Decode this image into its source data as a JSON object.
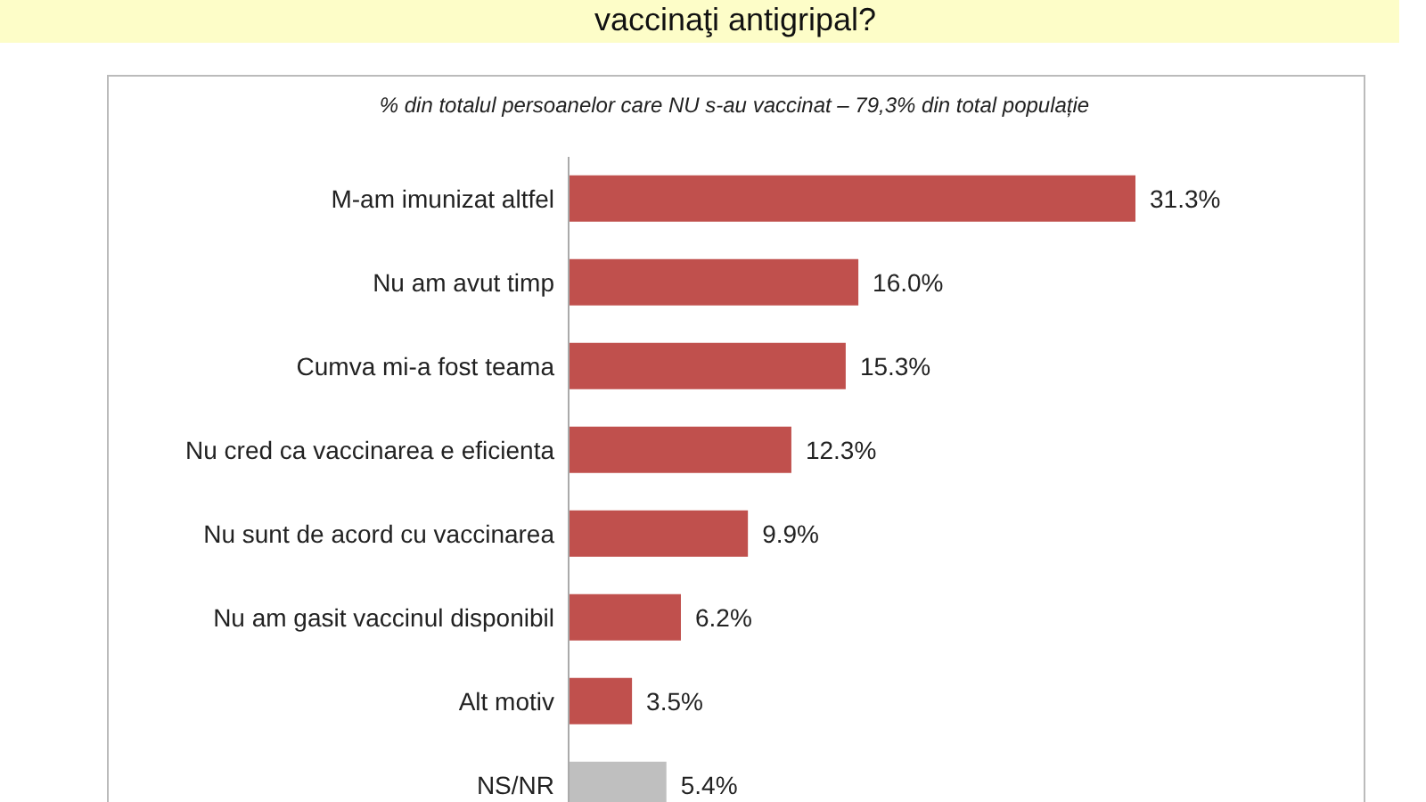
{
  "chart_data": {
    "type": "bar",
    "orientation": "horizontal",
    "title": "vaccinaţi antigripal?",
    "subtitle": "% din totalul persoanelor care NU s-au vaccinat – 79,3% din total populație",
    "categories": [
      "M-am imunizat altfel",
      "Nu am avut timp",
      "Cumva mi-a fost teama",
      "Nu cred ca vaccinarea e eficienta",
      "Nu sunt de acord cu vaccinarea",
      "Nu am gasit vaccinul disponibil",
      "Alt motiv",
      "NS/NR"
    ],
    "values": [
      31.3,
      16.0,
      15.3,
      12.3,
      9.9,
      6.2,
      3.5,
      5.4
    ],
    "colors": [
      "#c0504d",
      "#c0504d",
      "#c0504d",
      "#c0504d",
      "#c0504d",
      "#c0504d",
      "#c0504d",
      "#bfbfbf"
    ],
    "value_labels": [
      "31.3%",
      "16.0%",
      "15.3%",
      "12.3%",
      "9.9%",
      "6.2%",
      "3.5%",
      "5.4%"
    ]
  }
}
